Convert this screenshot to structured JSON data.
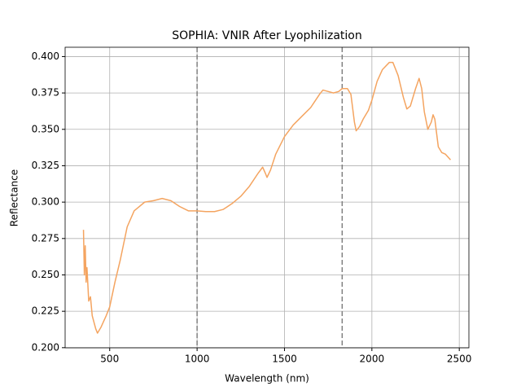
{
  "chart_data": {
    "type": "line",
    "title": "SOPHIA: VNIR After Lyophilization",
    "xlabel": "Wavelength (nm)",
    "ylabel": "Reflectance",
    "x": [
      350,
      355,
      360,
      365,
      370,
      380,
      390,
      400,
      420,
      430,
      450,
      480,
      500,
      530,
      560,
      600,
      640,
      700,
      750,
      800,
      850,
      900,
      950,
      1000,
      1050,
      1100,
      1150,
      1200,
      1250,
      1300,
      1350,
      1375,
      1390,
      1400,
      1420,
      1450,
      1500,
      1550,
      1600,
      1650,
      1700,
      1720,
      1750,
      1780,
      1810,
      1830,
      1860,
      1880,
      1900,
      1910,
      1930,
      1950,
      1980,
      2000,
      2030,
      2060,
      2100,
      2120,
      2150,
      2180,
      2200,
      2220,
      2250,
      2270,
      2285,
      2300,
      2320,
      2340,
      2350,
      2360,
      2380,
      2400,
      2420,
      2450
    ],
    "series": [
      {
        "name": "Reflectance",
        "color": "#f4a460",
        "values": [
          0.281,
          0.25,
          0.27,
          0.245,
          0.255,
          0.232,
          0.235,
          0.222,
          0.213,
          0.21,
          0.214,
          0.222,
          0.228,
          0.245,
          0.26,
          0.283,
          0.294,
          0.3,
          0.301,
          0.3025,
          0.301,
          0.297,
          0.294,
          0.294,
          0.2935,
          0.2935,
          0.295,
          0.299,
          0.304,
          0.311,
          0.32,
          0.324,
          0.32,
          0.317,
          0.322,
          0.333,
          0.345,
          0.353,
          0.359,
          0.365,
          0.374,
          0.377,
          0.376,
          0.375,
          0.376,
          0.378,
          0.378,
          0.374,
          0.355,
          0.349,
          0.352,
          0.357,
          0.363,
          0.37,
          0.383,
          0.391,
          0.396,
          0.396,
          0.387,
          0.372,
          0.364,
          0.366,
          0.378,
          0.385,
          0.378,
          0.362,
          0.35,
          0.355,
          0.36,
          0.357,
          0.338,
          0.334,
          0.333,
          0.329
        ]
      }
    ],
    "vlines": [
      1000,
      1830
    ],
    "vline_color": "#808080",
    "xlim": [
      245,
      2555
    ],
    "ylim": [
      0.1999,
      0.4064
    ],
    "xticks": [
      500,
      1000,
      1500,
      2000,
      2500
    ],
    "yticks": [
      {
        "value": 0.2,
        "label": "0.200"
      },
      {
        "value": 0.225,
        "label": "0.225"
      },
      {
        "value": 0.25,
        "label": "0.250"
      },
      {
        "value": 0.275,
        "label": "0.275"
      },
      {
        "value": 0.3,
        "label": "0.300"
      },
      {
        "value": 0.325,
        "label": "0.325"
      },
      {
        "value": 0.35,
        "label": "0.350"
      },
      {
        "value": 0.375,
        "label": "0.375"
      },
      {
        "value": 0.4,
        "label": "0.400"
      }
    ],
    "grid": true
  }
}
